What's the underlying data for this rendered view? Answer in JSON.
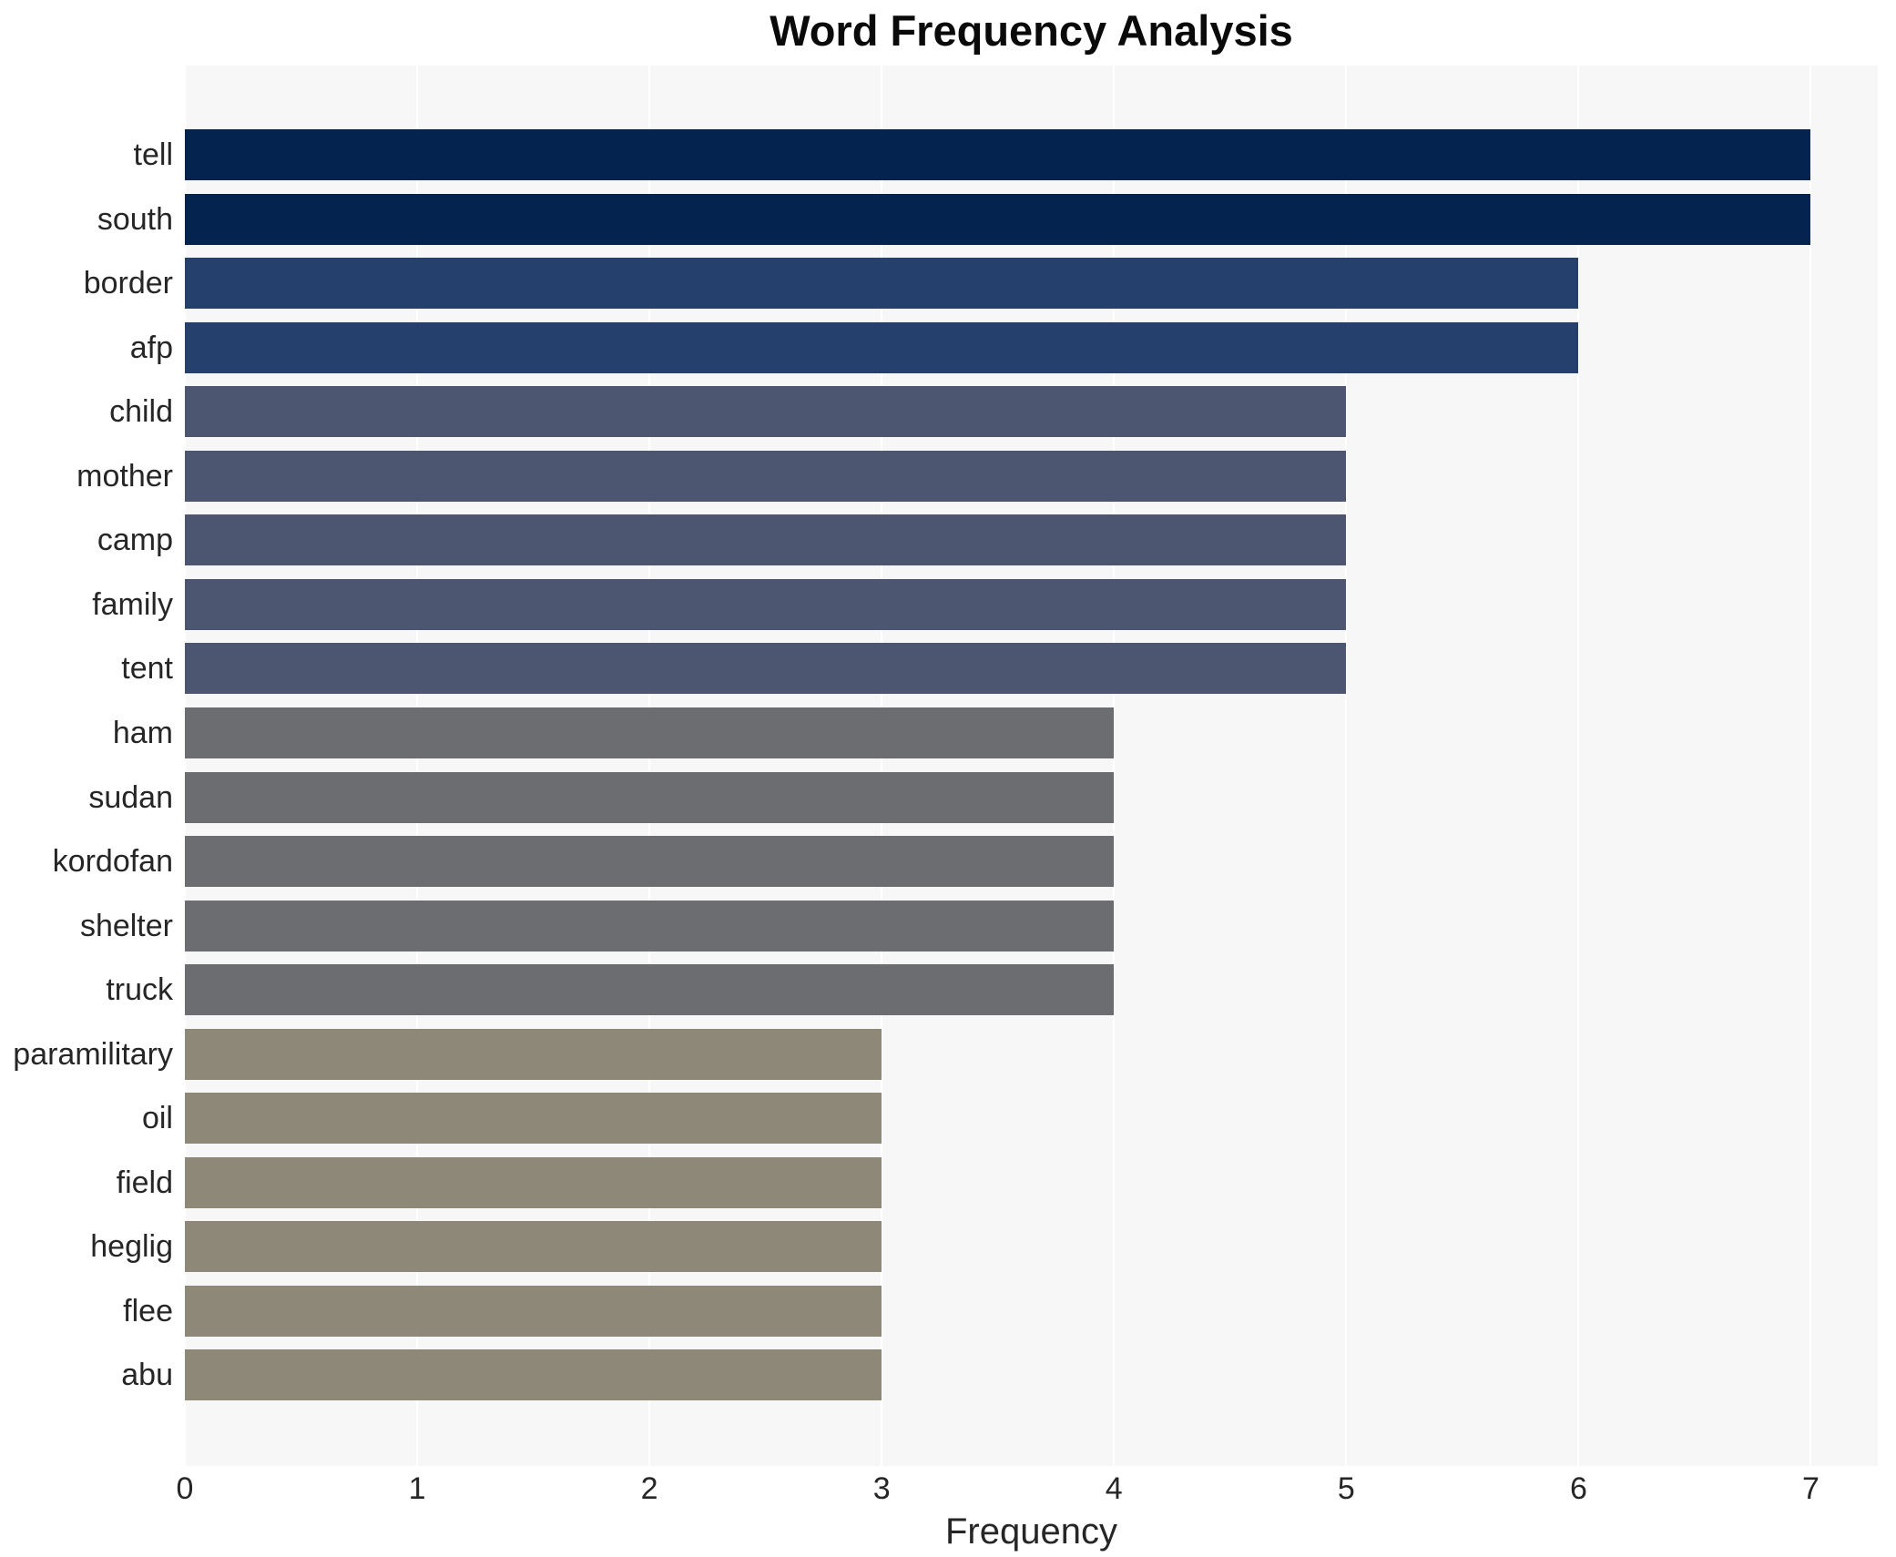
{
  "chart_data": {
    "type": "bar",
    "orientation": "horizontal",
    "title": "Word Frequency Analysis",
    "xlabel": "Frequency",
    "ylabel": "",
    "categories": [
      "tell",
      "south",
      "border",
      "afp",
      "child",
      "mother",
      "camp",
      "family",
      "tent",
      "ham",
      "sudan",
      "kordofan",
      "shelter",
      "truck",
      "paramilitary",
      "oil",
      "field",
      "heglig",
      "flee",
      "abu"
    ],
    "values": [
      7,
      7,
      6,
      6,
      5,
      5,
      5,
      5,
      5,
      4,
      4,
      4,
      4,
      4,
      3,
      3,
      3,
      3,
      3,
      3
    ],
    "xticks": [
      0,
      1,
      2,
      3,
      4,
      5,
      6,
      7
    ],
    "xlim": [
      0,
      7.29
    ],
    "grid": true,
    "legend": false,
    "colors_by_value": {
      "7": "#04234f",
      "6": "#26406d",
      "5": "#4d5671",
      "4": "#6c6d71",
      "3": "#8e8878"
    },
    "plot_background": "#f7f7f7",
    "gridline_color": "#ffffff",
    "text_color": "#262626"
  }
}
